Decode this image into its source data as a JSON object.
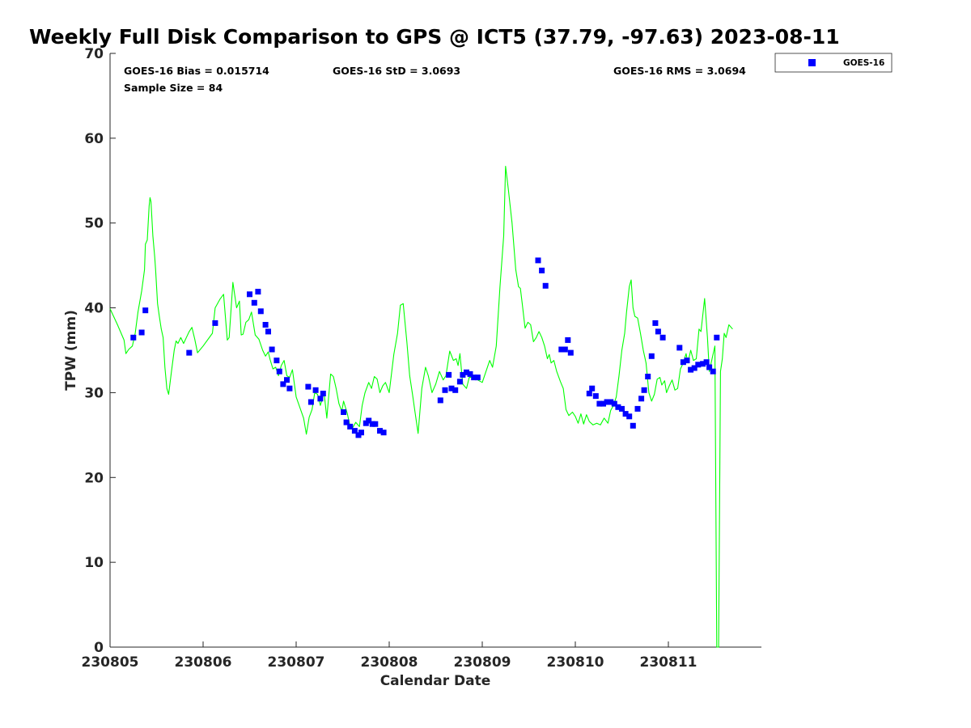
{
  "chart_data": {
    "type": "line+scatter",
    "title": "Weekly Full Disk Comparison to GPS @ ICT5 (37.79, -97.63) 2023-08-11",
    "xlabel": "Calendar Date",
    "ylabel": "TPW (mm)",
    "xlim": [
      0,
      7
    ],
    "ylim": [
      0,
      70
    ],
    "x_ticks": [
      0,
      1,
      2,
      3,
      4,
      5,
      6
    ],
    "x_tick_labels": [
      "230805",
      "230806",
      "230807",
      "230808",
      "230809",
      "230810",
      "230811"
    ],
    "y_ticks": [
      0,
      10,
      20,
      30,
      40,
      50,
      60,
      70
    ],
    "y_tick_labels": [
      "0",
      "10",
      "20",
      "30",
      "40",
      "50",
      "60",
      "70"
    ],
    "grid": false,
    "legend": {
      "position": "top-right-outside",
      "entries": [
        "GOES-16"
      ]
    },
    "stats": {
      "bias": "GOES-16 Bias = 0.015714",
      "std": "GOES-16 StD = 3.0693",
      "rms": "GOES-16 RMS = 3.0694",
      "sample": "Sample Size = 84"
    },
    "series": [
      {
        "name": "GPS",
        "style": "line",
        "color": "#00ff00",
        "points": [
          [
            0.0,
            39.9
          ],
          [
            0.08,
            38.0
          ],
          [
            0.15,
            36.2
          ],
          [
            0.17,
            34.6
          ],
          [
            0.2,
            35.1
          ],
          [
            0.24,
            35.5
          ],
          [
            0.27,
            37.0
          ],
          [
            0.3,
            39.5
          ],
          [
            0.34,
            42.0
          ],
          [
            0.37,
            44.5
          ],
          [
            0.38,
            47.5
          ],
          [
            0.4,
            48.0
          ],
          [
            0.42,
            52.0
          ],
          [
            0.43,
            53.0
          ],
          [
            0.44,
            52.5
          ],
          [
            0.46,
            48.5
          ],
          [
            0.48,
            46.0
          ],
          [
            0.49,
            44.5
          ],
          [
            0.51,
            40.5
          ],
          [
            0.53,
            39.0
          ],
          [
            0.55,
            37.5
          ],
          [
            0.57,
            36.5
          ],
          [
            0.59,
            33.0
          ],
          [
            0.61,
            30.5
          ],
          [
            0.63,
            29.8
          ],
          [
            0.66,
            32.5
          ],
          [
            0.69,
            35.0
          ],
          [
            0.71,
            36.1
          ],
          [
            0.73,
            35.8
          ],
          [
            0.76,
            36.5
          ],
          [
            0.79,
            35.8
          ],
          [
            0.82,
            36.5
          ],
          [
            0.85,
            37.2
          ],
          [
            0.88,
            37.7
          ],
          [
            0.91,
            36.3
          ],
          [
            0.94,
            34.7
          ],
          [
            1.0,
            35.5
          ],
          [
            1.1,
            37.0
          ],
          [
            1.13,
            40.0
          ],
          [
            1.18,
            41.0
          ],
          [
            1.22,
            41.6
          ],
          [
            1.26,
            36.2
          ],
          [
            1.28,
            36.5
          ],
          [
            1.32,
            43.0
          ],
          [
            1.36,
            40.0
          ],
          [
            1.39,
            40.8
          ],
          [
            1.41,
            36.8
          ],
          [
            1.43,
            36.9
          ],
          [
            1.46,
            38.3
          ],
          [
            1.49,
            38.6
          ],
          [
            1.52,
            39.5
          ],
          [
            1.56,
            36.8
          ],
          [
            1.6,
            36.3
          ],
          [
            1.64,
            35.0
          ],
          [
            1.67,
            34.3
          ],
          [
            1.7,
            34.8
          ],
          [
            1.72,
            33.9
          ],
          [
            1.75,
            32.8
          ],
          [
            1.78,
            33.0
          ],
          [
            1.81,
            32.0
          ],
          [
            1.84,
            33.2
          ],
          [
            1.87,
            33.8
          ],
          [
            1.9,
            32.0
          ],
          [
            1.93,
            31.8
          ],
          [
            1.96,
            32.7
          ],
          [
            2.0,
            29.5
          ],
          [
            2.08,
            27.0
          ],
          [
            2.11,
            25.1
          ],
          [
            2.14,
            27.1
          ],
          [
            2.17,
            28.0
          ],
          [
            2.2,
            30.0
          ],
          [
            2.23,
            29.8
          ],
          [
            2.26,
            28.5
          ],
          [
            2.3,
            30.0
          ],
          [
            2.33,
            27.0
          ],
          [
            2.37,
            32.2
          ],
          [
            2.4,
            31.9
          ],
          [
            2.43,
            30.5
          ],
          [
            2.46,
            28.7
          ],
          [
            2.49,
            27.8
          ],
          [
            2.51,
            29.0
          ],
          [
            2.55,
            27.5
          ],
          [
            2.58,
            26.0
          ],
          [
            2.61,
            25.9
          ],
          [
            2.64,
            26.5
          ],
          [
            2.68,
            26.0
          ],
          [
            2.71,
            28.5
          ],
          [
            2.74,
            30.0
          ],
          [
            2.78,
            31.2
          ],
          [
            2.81,
            30.5
          ],
          [
            2.84,
            31.9
          ],
          [
            2.87,
            31.6
          ],
          [
            2.9,
            30.0
          ],
          [
            2.93,
            30.8
          ],
          [
            2.96,
            31.2
          ],
          [
            3.0,
            30.0
          ],
          [
            3.05,
            34.5
          ],
          [
            3.09,
            37.0
          ],
          [
            3.12,
            40.3
          ],
          [
            3.15,
            40.5
          ],
          [
            3.19,
            36.0
          ],
          [
            3.22,
            32.0
          ],
          [
            3.25,
            29.8
          ],
          [
            3.28,
            27.5
          ],
          [
            3.31,
            25.2
          ],
          [
            3.35,
            30.5
          ],
          [
            3.39,
            33.0
          ],
          [
            3.42,
            32.0
          ],
          [
            3.46,
            30.0
          ],
          [
            3.5,
            31.0
          ],
          [
            3.54,
            32.5
          ],
          [
            3.58,
            31.5
          ],
          [
            3.61,
            32.0
          ],
          [
            3.65,
            34.9
          ],
          [
            3.69,
            33.8
          ],
          [
            3.72,
            34.0
          ],
          [
            3.74,
            33.2
          ],
          [
            3.76,
            34.6
          ],
          [
            3.79,
            31.0
          ],
          [
            3.83,
            30.5
          ],
          [
            3.86,
            31.8
          ],
          [
            3.9,
            31.8
          ],
          [
            3.95,
            31.5
          ],
          [
            4.0,
            31.2
          ],
          [
            4.04,
            32.5
          ],
          [
            4.08,
            33.8
          ],
          [
            4.11,
            33.0
          ],
          [
            4.15,
            35.5
          ],
          [
            4.19,
            42.5
          ],
          [
            4.23,
            48.5
          ],
          [
            4.25,
            56.7
          ],
          [
            4.28,
            54.0
          ],
          [
            4.32,
            50.0
          ],
          [
            4.36,
            44.5
          ],
          [
            4.39,
            42.5
          ],
          [
            4.41,
            42.3
          ],
          [
            4.43,
            40.5
          ],
          [
            4.46,
            37.6
          ],
          [
            4.49,
            38.3
          ],
          [
            4.52,
            38.0
          ],
          [
            4.55,
            36.0
          ],
          [
            4.58,
            36.5
          ],
          [
            4.61,
            37.2
          ],
          [
            4.64,
            36.5
          ],
          [
            4.67,
            35.5
          ],
          [
            4.7,
            34.0
          ],
          [
            4.72,
            34.5
          ],
          [
            4.74,
            33.5
          ],
          [
            4.77,
            33.8
          ],
          [
            4.8,
            32.5
          ],
          [
            4.84,
            31.3
          ],
          [
            4.87,
            30.5
          ],
          [
            4.9,
            28.0
          ],
          [
            4.93,
            27.3
          ],
          [
            4.97,
            27.7
          ],
          [
            5.0,
            27.2
          ],
          [
            5.03,
            26.4
          ],
          [
            5.06,
            27.5
          ],
          [
            5.09,
            26.3
          ],
          [
            5.12,
            27.4
          ],
          [
            5.15,
            26.6
          ],
          [
            5.19,
            26.2
          ],
          [
            5.23,
            26.4
          ],
          [
            5.27,
            26.2
          ],
          [
            5.31,
            27.0
          ],
          [
            5.35,
            26.4
          ],
          [
            5.38,
            27.9
          ],
          [
            5.41,
            28.5
          ],
          [
            5.44,
            29.5
          ],
          [
            5.47,
            32.0
          ],
          [
            5.5,
            35.0
          ],
          [
            5.53,
            37.0
          ],
          [
            5.55,
            39.5
          ],
          [
            5.58,
            42.5
          ],
          [
            5.6,
            43.3
          ],
          [
            5.62,
            40.0
          ],
          [
            5.64,
            39.0
          ],
          [
            5.67,
            38.8
          ],
          [
            5.7,
            37.0
          ],
          [
            5.73,
            35.0
          ],
          [
            5.76,
            33.5
          ],
          [
            5.79,
            30.0
          ],
          [
            5.82,
            29.0
          ],
          [
            5.85,
            29.8
          ],
          [
            5.88,
            31.6
          ],
          [
            5.91,
            31.8
          ],
          [
            5.93,
            30.9
          ],
          [
            5.96,
            31.4
          ],
          [
            5.98,
            30.0
          ],
          [
            6.01,
            30.8
          ],
          [
            6.04,
            31.5
          ],
          [
            6.07,
            30.3
          ],
          [
            6.1,
            30.5
          ],
          [
            6.13,
            32.8
          ],
          [
            6.16,
            33.5
          ],
          [
            6.19,
            34.6
          ],
          [
            6.21,
            33.5
          ],
          [
            6.24,
            35.0
          ],
          [
            6.27,
            33.8
          ],
          [
            6.3,
            34.0
          ],
          [
            6.33,
            37.5
          ],
          [
            6.35,
            37.2
          ],
          [
            6.39,
            41.1
          ],
          [
            6.42,
            36.5
          ],
          [
            6.44,
            32.5
          ],
          [
            6.47,
            34.0
          ],
          [
            6.5,
            35.5
          ],
          [
            6.52,
            0.0
          ],
          [
            6.54,
            0.0
          ],
          [
            6.56,
            32.5
          ],
          [
            6.58,
            34.0
          ],
          [
            6.6,
            37.0
          ],
          [
            6.62,
            36.5
          ],
          [
            6.65,
            38.0
          ],
          [
            6.69,
            37.5
          ]
        ]
      },
      {
        "name": "GOES-16",
        "style": "scatter",
        "color": "#0000ff",
        "points": [
          [
            0.25,
            36.5
          ],
          [
            0.34,
            37.1
          ],
          [
            0.38,
            39.7
          ],
          [
            0.85,
            34.7
          ],
          [
            1.13,
            38.2
          ],
          [
            1.5,
            41.6
          ],
          [
            1.55,
            40.6
          ],
          [
            1.59,
            41.9
          ],
          [
            1.62,
            39.6
          ],
          [
            1.67,
            38.0
          ],
          [
            1.7,
            37.2
          ],
          [
            1.74,
            35.1
          ],
          [
            1.79,
            33.8
          ],
          [
            1.82,
            32.5
          ],
          [
            1.86,
            31.0
          ],
          [
            1.9,
            31.5
          ],
          [
            1.93,
            30.5
          ],
          [
            2.13,
            30.7
          ],
          [
            2.16,
            28.9
          ],
          [
            2.21,
            30.3
          ],
          [
            2.26,
            29.3
          ],
          [
            2.29,
            29.9
          ],
          [
            2.51,
            27.7
          ],
          [
            2.54,
            26.5
          ],
          [
            2.58,
            26.0
          ],
          [
            2.63,
            25.5
          ],
          [
            2.67,
            25.0
          ],
          [
            2.7,
            25.3
          ],
          [
            2.75,
            26.4
          ],
          [
            2.78,
            26.7
          ],
          [
            2.82,
            26.3
          ],
          [
            2.85,
            26.3
          ],
          [
            2.9,
            25.5
          ],
          [
            2.94,
            25.3
          ],
          [
            3.55,
            29.1
          ],
          [
            3.6,
            30.3
          ],
          [
            3.64,
            32.1
          ],
          [
            3.67,
            30.5
          ],
          [
            3.71,
            30.3
          ],
          [
            3.76,
            31.3
          ],
          [
            3.79,
            32.1
          ],
          [
            3.83,
            32.4
          ],
          [
            3.87,
            32.2
          ],
          [
            3.91,
            31.8
          ],
          [
            3.95,
            31.8
          ],
          [
            4.6,
            45.6
          ],
          [
            4.64,
            44.4
          ],
          [
            4.68,
            42.6
          ],
          [
            4.85,
            35.1
          ],
          [
            4.89,
            35.1
          ],
          [
            4.92,
            36.2
          ],
          [
            4.95,
            34.7
          ],
          [
            5.15,
            29.9
          ],
          [
            5.18,
            30.5
          ],
          [
            5.22,
            29.6
          ],
          [
            5.26,
            28.7
          ],
          [
            5.3,
            28.7
          ],
          [
            5.34,
            28.9
          ],
          [
            5.38,
            28.9
          ],
          [
            5.42,
            28.7
          ],
          [
            5.46,
            28.3
          ],
          [
            5.5,
            28.1
          ],
          [
            5.54,
            27.5
          ],
          [
            5.58,
            27.2
          ],
          [
            5.62,
            26.1
          ],
          [
            5.67,
            28.1
          ],
          [
            5.71,
            29.3
          ],
          [
            5.74,
            30.3
          ],
          [
            5.78,
            31.9
          ],
          [
            5.82,
            34.3
          ],
          [
            5.86,
            38.2
          ],
          [
            5.89,
            37.2
          ],
          [
            5.94,
            36.5
          ],
          [
            6.12,
            35.3
          ],
          [
            6.16,
            33.6
          ],
          [
            6.2,
            33.8
          ],
          [
            6.24,
            32.7
          ],
          [
            6.28,
            32.9
          ],
          [
            6.32,
            33.3
          ],
          [
            6.37,
            33.4
          ],
          [
            6.41,
            33.6
          ],
          [
            6.44,
            33.0
          ],
          [
            6.48,
            32.5
          ],
          [
            6.52,
            36.5
          ]
        ]
      }
    ]
  }
}
